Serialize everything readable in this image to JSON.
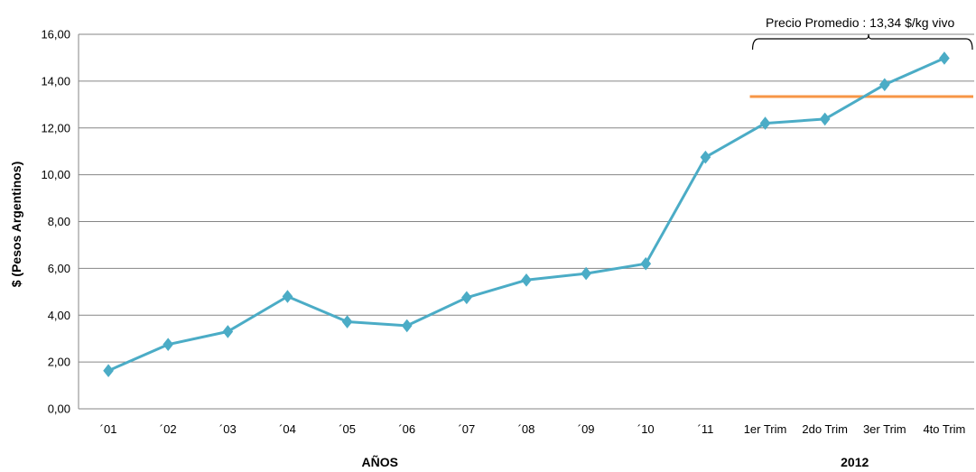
{
  "chart_data": {
    "type": "line",
    "title": "",
    "xlabel": "AÑOS",
    "xlabel_secondary": "2012",
    "ylabel": "$ (Pesos Argentinos)",
    "ylim": [
      0,
      16
    ],
    "yticks": [
      "0,00",
      "2,00",
      "4,00",
      "6,00",
      "8,00",
      "10,00",
      "12,00",
      "14,00",
      "16,00"
    ],
    "grid": true,
    "legend": "none",
    "categories": [
      "´01",
      "´02",
      "´03",
      "´04",
      "´05",
      "´06",
      "´07",
      "´08",
      "´09",
      "´10",
      "´11",
      "1er Trim",
      "2do Trim",
      "3er Trim",
      "4to Trim"
    ],
    "series": [
      {
        "values": [
          1.63,
          2.75,
          3.3,
          4.8,
          3.72,
          3.55,
          4.75,
          5.5,
          5.78,
          6.2,
          10.75,
          12.2,
          12.38,
          13.85,
          14.98
        ],
        "color": "#4BACC6"
      }
    ],
    "average_line": {
      "label": "Precio Promedio : 13,34 $/kg vivo",
      "value": 13.34,
      "from_category": 11,
      "to_category": 14,
      "color": "#F79646"
    }
  }
}
